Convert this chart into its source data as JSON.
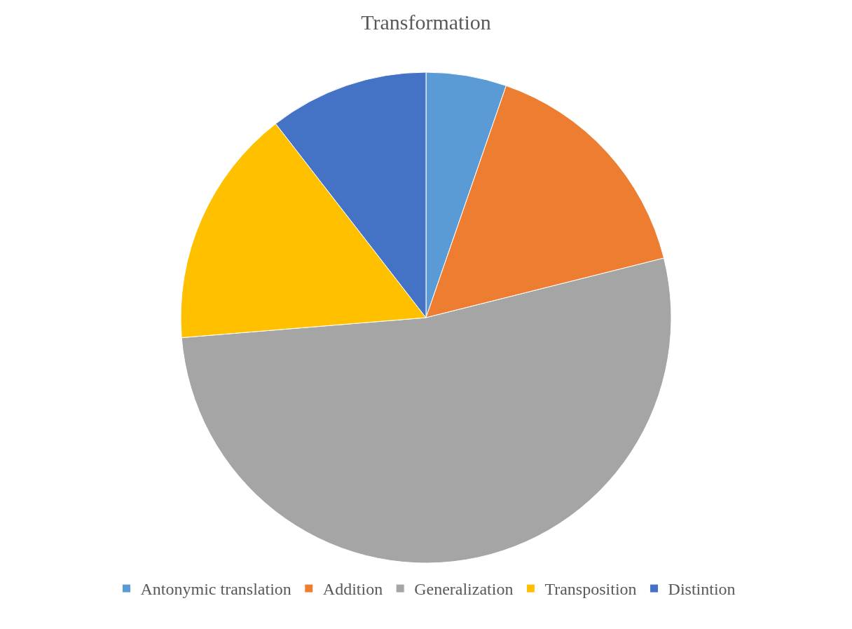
{
  "chart_data": {
    "type": "pie",
    "title": "Transformation",
    "categories": [
      "Antonymic translation",
      "Addition",
      "Generalization",
      "Transposition",
      "Distintion"
    ],
    "values": [
      5.3,
      15.8,
      52.6,
      15.8,
      10.5
    ],
    "colors": [
      "#5b9bd5",
      "#ed7d31",
      "#a5a5a5",
      "#ffc000",
      "#4472c4"
    ],
    "legend": "bottom"
  }
}
